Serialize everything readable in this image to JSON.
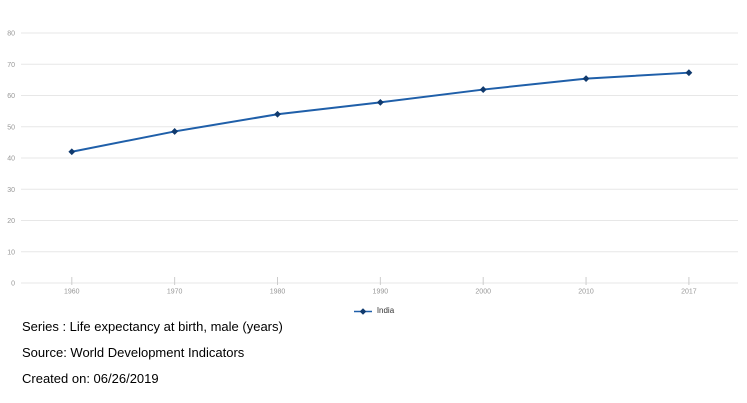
{
  "chart_data": {
    "type": "line",
    "title": "",
    "categories": [
      "1960",
      "1970",
      "1980",
      "1990",
      "2000",
      "2010",
      "2017"
    ],
    "series": [
      {
        "name": "India",
        "values": [
          42,
          48.5,
          54,
          57.8,
          61.9,
          65.4,
          67.3
        ],
        "line_color": "#1f5fa9",
        "marker_color": "#103a6e",
        "marker_shape": "diamond"
      }
    ],
    "xlabel": "",
    "ylabel": "",
    "ylim": [
      0,
      80
    ],
    "y_ticks": [
      0,
      10,
      20,
      30,
      40,
      50,
      60,
      70,
      80
    ],
    "grid": true,
    "gridline_color": "#e7e7e7",
    "tick_mark_color": "#cccccc",
    "axis_label_color": "#979797",
    "legend_position": "bottom-center"
  },
  "legend": {
    "item_label": "India"
  },
  "footer": {
    "series_line": "Series : Life expectancy at birth, male (years)",
    "source_line": "Source: World Development Indicators",
    "created_line": "Created on: 06/26/2019"
  }
}
